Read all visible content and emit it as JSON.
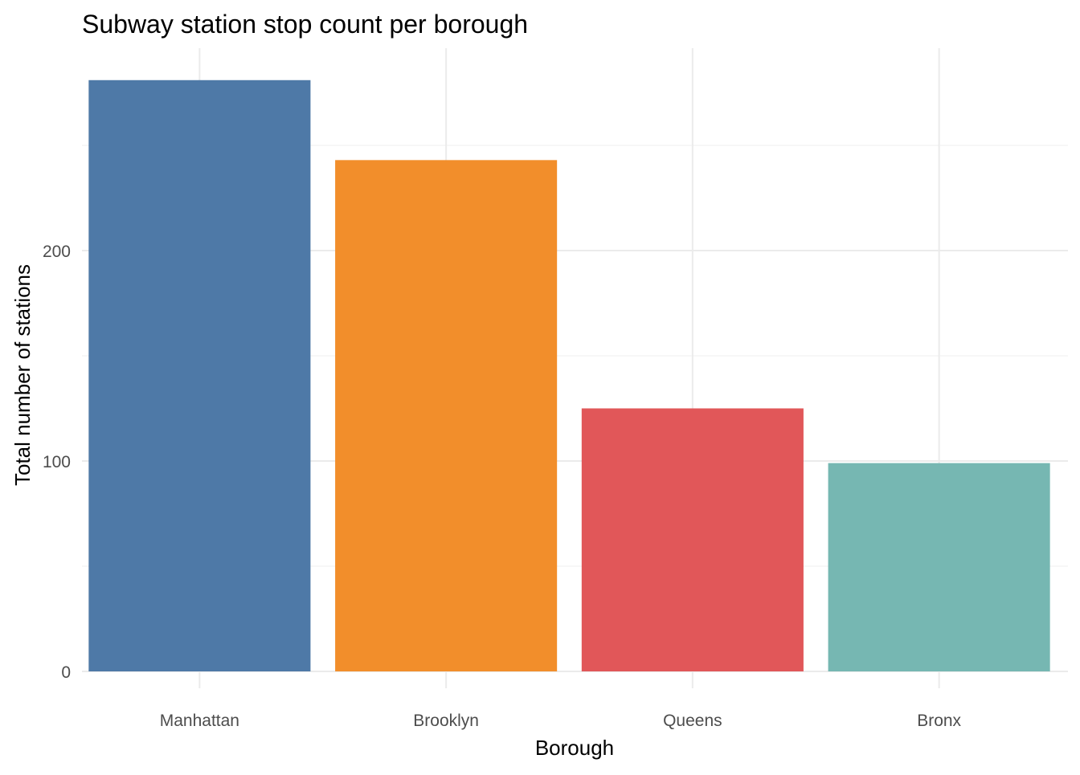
{
  "chart_data": {
    "type": "bar",
    "title": "Subway station stop count per borough",
    "xlabel": "Borough",
    "ylabel": "Total number of stations",
    "categories": [
      "Manhattan",
      "Brooklyn",
      "Queens",
      "Bronx"
    ],
    "values": [
      281,
      243,
      125,
      99
    ],
    "colors": [
      "#4E79A7",
      "#F28E2B",
      "#E15759",
      "#76B7B2"
    ],
    "ylim": [
      0,
      295
    ],
    "yticks": [
      0,
      100,
      200
    ],
    "grid": true,
    "legend": "none"
  }
}
